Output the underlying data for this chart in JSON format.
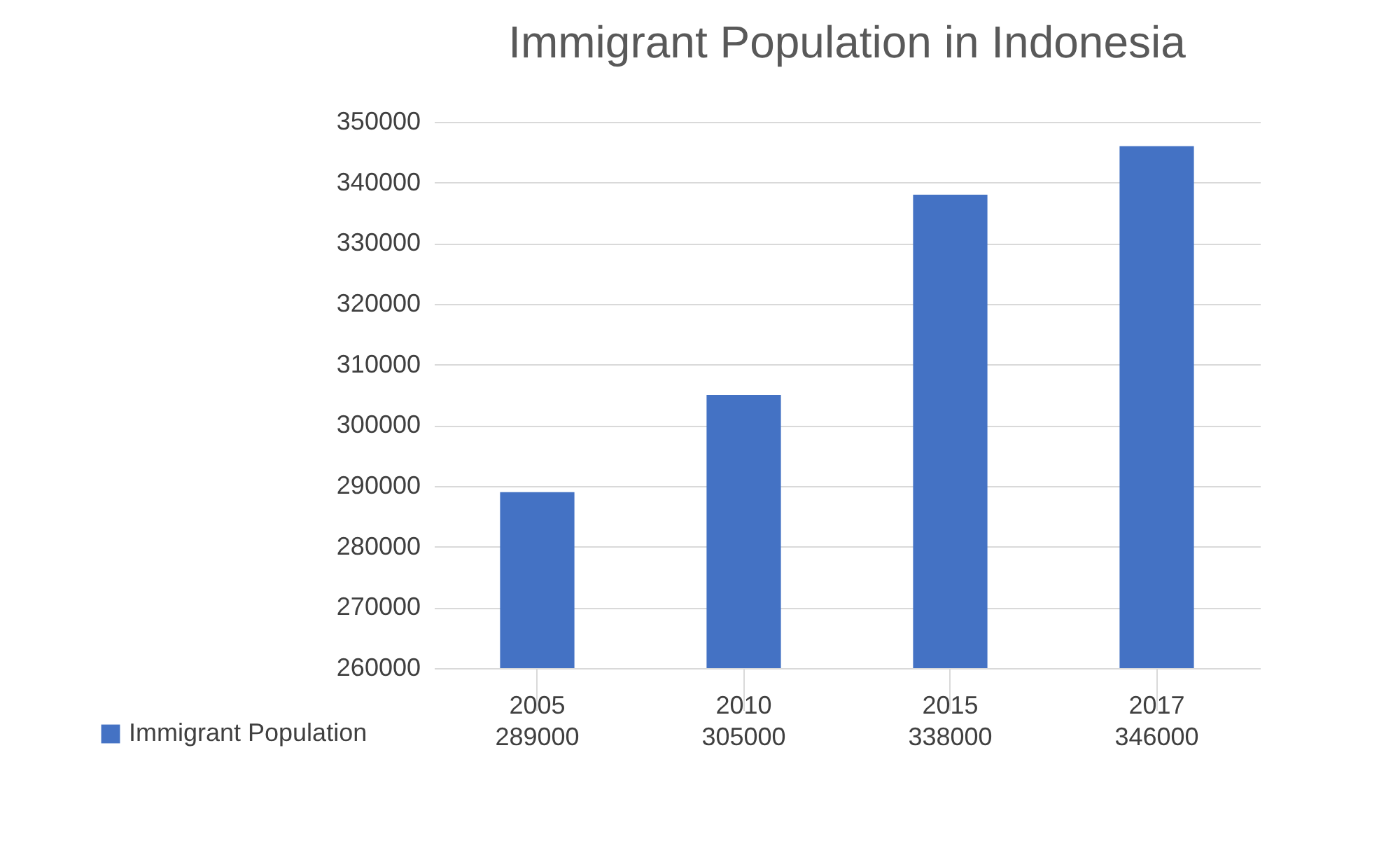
{
  "chart_data": {
    "type": "bar",
    "title": "Immigrant Population in Indonesia",
    "categories": [
      "2005",
      "2010",
      "2015",
      "2017"
    ],
    "series": [
      {
        "name": "Immigrant Population",
        "color": "#4472c4",
        "values": [
          289000,
          305000,
          338000,
          346000
        ]
      }
    ],
    "ylim": [
      260000,
      350000
    ],
    "yticks": [
      260000,
      270000,
      280000,
      290000,
      300000,
      310000,
      320000,
      330000,
      340000,
      350000
    ],
    "grid": "y",
    "legend": "bottom",
    "data_labels": true
  }
}
